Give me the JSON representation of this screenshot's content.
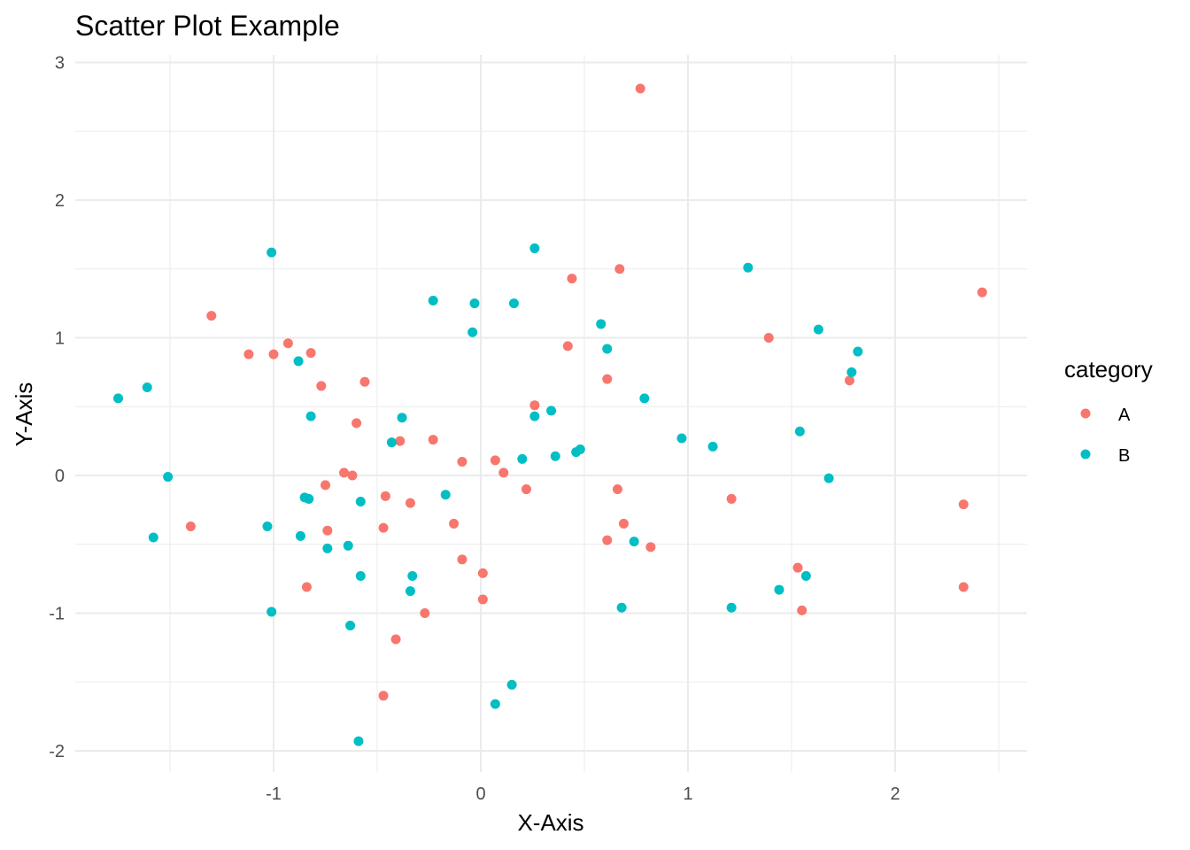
{
  "chart_data": {
    "type": "scatter",
    "title": "Scatter Plot Example",
    "xlabel": "X-Axis",
    "ylabel": "Y-Axis",
    "xlim": [
      -1.95,
      2.6
    ],
    "ylim": [
      -2.15,
      3.1
    ],
    "x_ticks": [
      -1,
      0,
      1,
      2
    ],
    "x_tick_labels": [
      "-1",
      "0",
      "1",
      "2"
    ],
    "x_minor": [
      -1.5,
      -0.5,
      0.5,
      1.5,
      2.5
    ],
    "y_ticks": [
      -2,
      -1,
      0,
      1,
      2,
      3
    ],
    "y_tick_labels": [
      "-2",
      "-1",
      "0",
      "1",
      "2",
      "3"
    ],
    "y_minor": [
      -1.5,
      -0.5,
      0.5,
      1.5,
      2.5
    ],
    "grid": true,
    "legend": {
      "title": "category",
      "position": "right",
      "entries": [
        {
          "label": "A",
          "color": "#f8766d"
        },
        {
          "label": "B",
          "color": "#00bfc4"
        }
      ]
    },
    "series": [
      {
        "name": "A",
        "color": "#f8766d",
        "points": [
          [
            0.77,
            2.81
          ],
          [
            2.42,
            1.33
          ],
          [
            0.67,
            1.5
          ],
          [
            0.44,
            1.43
          ],
          [
            -1.3,
            1.16
          ],
          [
            1.39,
            1.0
          ],
          [
            -0.93,
            0.96
          ],
          [
            0.42,
            0.94
          ],
          [
            -1.12,
            0.88
          ],
          [
            -1.0,
            0.88
          ],
          [
            -0.82,
            0.89
          ],
          [
            -0.56,
            0.68
          ],
          [
            -0.77,
            0.65
          ],
          [
            0.61,
            0.7
          ],
          [
            1.78,
            0.69
          ],
          [
            0.26,
            0.51
          ],
          [
            -0.6,
            0.38
          ],
          [
            -0.23,
            0.26
          ],
          [
            -0.39,
            0.25
          ],
          [
            -0.09,
            0.1
          ],
          [
            0.07,
            0.11
          ],
          [
            0.11,
            0.02
          ],
          [
            -0.66,
            0.02
          ],
          [
            -0.62,
            0.0
          ],
          [
            -0.75,
            -0.07
          ],
          [
            0.22,
            -0.1
          ],
          [
            0.66,
            -0.1
          ],
          [
            -0.46,
            -0.15
          ],
          [
            -0.34,
            -0.2
          ],
          [
            1.21,
            -0.17
          ],
          [
            2.33,
            -0.21
          ],
          [
            -1.4,
            -0.37
          ],
          [
            -0.74,
            -0.4
          ],
          [
            -0.47,
            -0.38
          ],
          [
            -0.13,
            -0.35
          ],
          [
            0.69,
            -0.35
          ],
          [
            0.61,
            -0.47
          ],
          [
            0.82,
            -0.52
          ],
          [
            -0.09,
            -0.61
          ],
          [
            0.01,
            -0.71
          ],
          [
            1.53,
            -0.67
          ],
          [
            -0.84,
            -0.81
          ],
          [
            2.33,
            -0.81
          ],
          [
            0.01,
            -0.9
          ],
          [
            -0.27,
            -1.0
          ],
          [
            1.55,
            -0.98
          ],
          [
            -0.41,
            -1.19
          ],
          [
            -0.47,
            -1.6
          ]
        ]
      },
      {
        "name": "B",
        "color": "#00bfc4",
        "points": [
          [
            0.26,
            1.65
          ],
          [
            -1.01,
            1.62
          ],
          [
            1.29,
            1.51
          ],
          [
            -0.23,
            1.27
          ],
          [
            -0.03,
            1.25
          ],
          [
            0.16,
            1.25
          ],
          [
            0.58,
            1.1
          ],
          [
            1.63,
            1.06
          ],
          [
            -0.04,
            1.04
          ],
          [
            0.61,
            0.92
          ],
          [
            1.82,
            0.9
          ],
          [
            -0.88,
            0.83
          ],
          [
            1.79,
            0.75
          ],
          [
            -1.61,
            0.64
          ],
          [
            -1.75,
            0.56
          ],
          [
            0.79,
            0.56
          ],
          [
            0.34,
            0.47
          ],
          [
            -0.82,
            0.43
          ],
          [
            0.26,
            0.43
          ],
          [
            -0.38,
            0.42
          ],
          [
            1.54,
            0.32
          ],
          [
            0.97,
            0.27
          ],
          [
            -0.43,
            0.24
          ],
          [
            1.12,
            0.21
          ],
          [
            0.48,
            0.19
          ],
          [
            0.46,
            0.17
          ],
          [
            0.36,
            0.14
          ],
          [
            0.2,
            0.12
          ],
          [
            -1.51,
            -0.01
          ],
          [
            1.68,
            -0.02
          ],
          [
            -0.17,
            -0.14
          ],
          [
            -0.85,
            -0.16
          ],
          [
            -0.83,
            -0.17
          ],
          [
            -0.58,
            -0.19
          ],
          [
            -1.03,
            -0.37
          ],
          [
            -1.58,
            -0.45
          ],
          [
            -0.87,
            -0.44
          ],
          [
            0.74,
            -0.48
          ],
          [
            -0.64,
            -0.51
          ],
          [
            -0.74,
            -0.53
          ],
          [
            -0.58,
            -0.73
          ],
          [
            -0.33,
            -0.73
          ],
          [
            1.57,
            -0.73
          ],
          [
            -0.34,
            -0.84
          ],
          [
            1.44,
            -0.83
          ],
          [
            0.68,
            -0.96
          ],
          [
            1.21,
            -0.96
          ],
          [
            -1.01,
            -0.99
          ],
          [
            -0.63,
            -1.09
          ],
          [
            0.15,
            -1.52
          ],
          [
            0.07,
            -1.66
          ],
          [
            -0.59,
            -1.93
          ]
        ]
      }
    ]
  }
}
